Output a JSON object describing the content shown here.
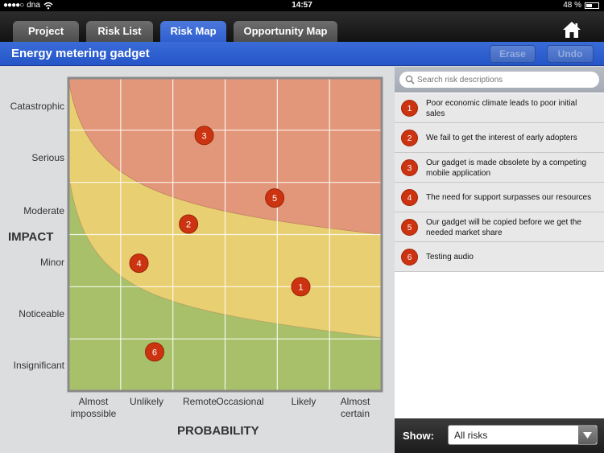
{
  "status": {
    "carrier": "dna",
    "time": "14:57",
    "battery": "48 %",
    "battery_level": 0.48
  },
  "tabs": [
    {
      "label": "Project"
    },
    {
      "label": "Risk List"
    },
    {
      "label": "Risk Map",
      "active": true
    },
    {
      "label": "Opportunity Map"
    }
  ],
  "home_icon": "home-icon",
  "titlebar": {
    "title": "Energy metering gadget",
    "erase_label": "Erase",
    "undo_label": "Undo"
  },
  "map": {
    "y_axis_title": "IMPACT",
    "x_axis_title": "PROBABILITY",
    "impact_levels": [
      "Catastrophic",
      "Serious",
      "Moderate",
      "Minor",
      "Noticeable",
      "Insignificant"
    ],
    "probability_levels": [
      {
        "line1": "Almost",
        "line2": "impossible"
      },
      {
        "line1": "Unlikely",
        "line2": ""
      },
      {
        "line1": "Remote",
        "line2": ""
      },
      {
        "line1": "Occasional",
        "line2": ""
      },
      {
        "line1": "Likely",
        "line2": ""
      },
      {
        "line1": "Almost",
        "line2": "certain"
      }
    ],
    "zone_colors": {
      "high": "#e3977a",
      "medium": "#e8cf72",
      "low": "#a8c06a",
      "marker": "#cc3311"
    },
    "markers": [
      {
        "label": "1",
        "probability": 4.45,
        "impact": 2.0
      },
      {
        "label": "2",
        "probability": 2.3,
        "impact": 3.2
      },
      {
        "label": "3",
        "probability": 2.6,
        "impact": 4.9
      },
      {
        "label": "4",
        "probability": 1.35,
        "impact": 2.45
      },
      {
        "label": "5",
        "probability": 3.95,
        "impact": 3.7
      },
      {
        "label": "6",
        "probability": 1.65,
        "impact": 0.75
      }
    ]
  },
  "search": {
    "placeholder": "Search risk descriptions",
    "icon": "search-icon"
  },
  "risks": [
    {
      "number": "1",
      "description": "Poor economic climate leads to poor initial sales"
    },
    {
      "number": "2",
      "description": "We fail to get the interest of early adopters"
    },
    {
      "number": "3",
      "description": "Our gadget is made obsolete by a competing mobile application"
    },
    {
      "number": "4",
      "description": "The need for support surpasses our resources"
    },
    {
      "number": "5",
      "description": "Our gadget will be copied before we get the needed market share"
    },
    {
      "number": "6",
      "description": "Testing audio"
    }
  ],
  "footer": {
    "show_label": "Show:",
    "filter_value": "All risks"
  }
}
